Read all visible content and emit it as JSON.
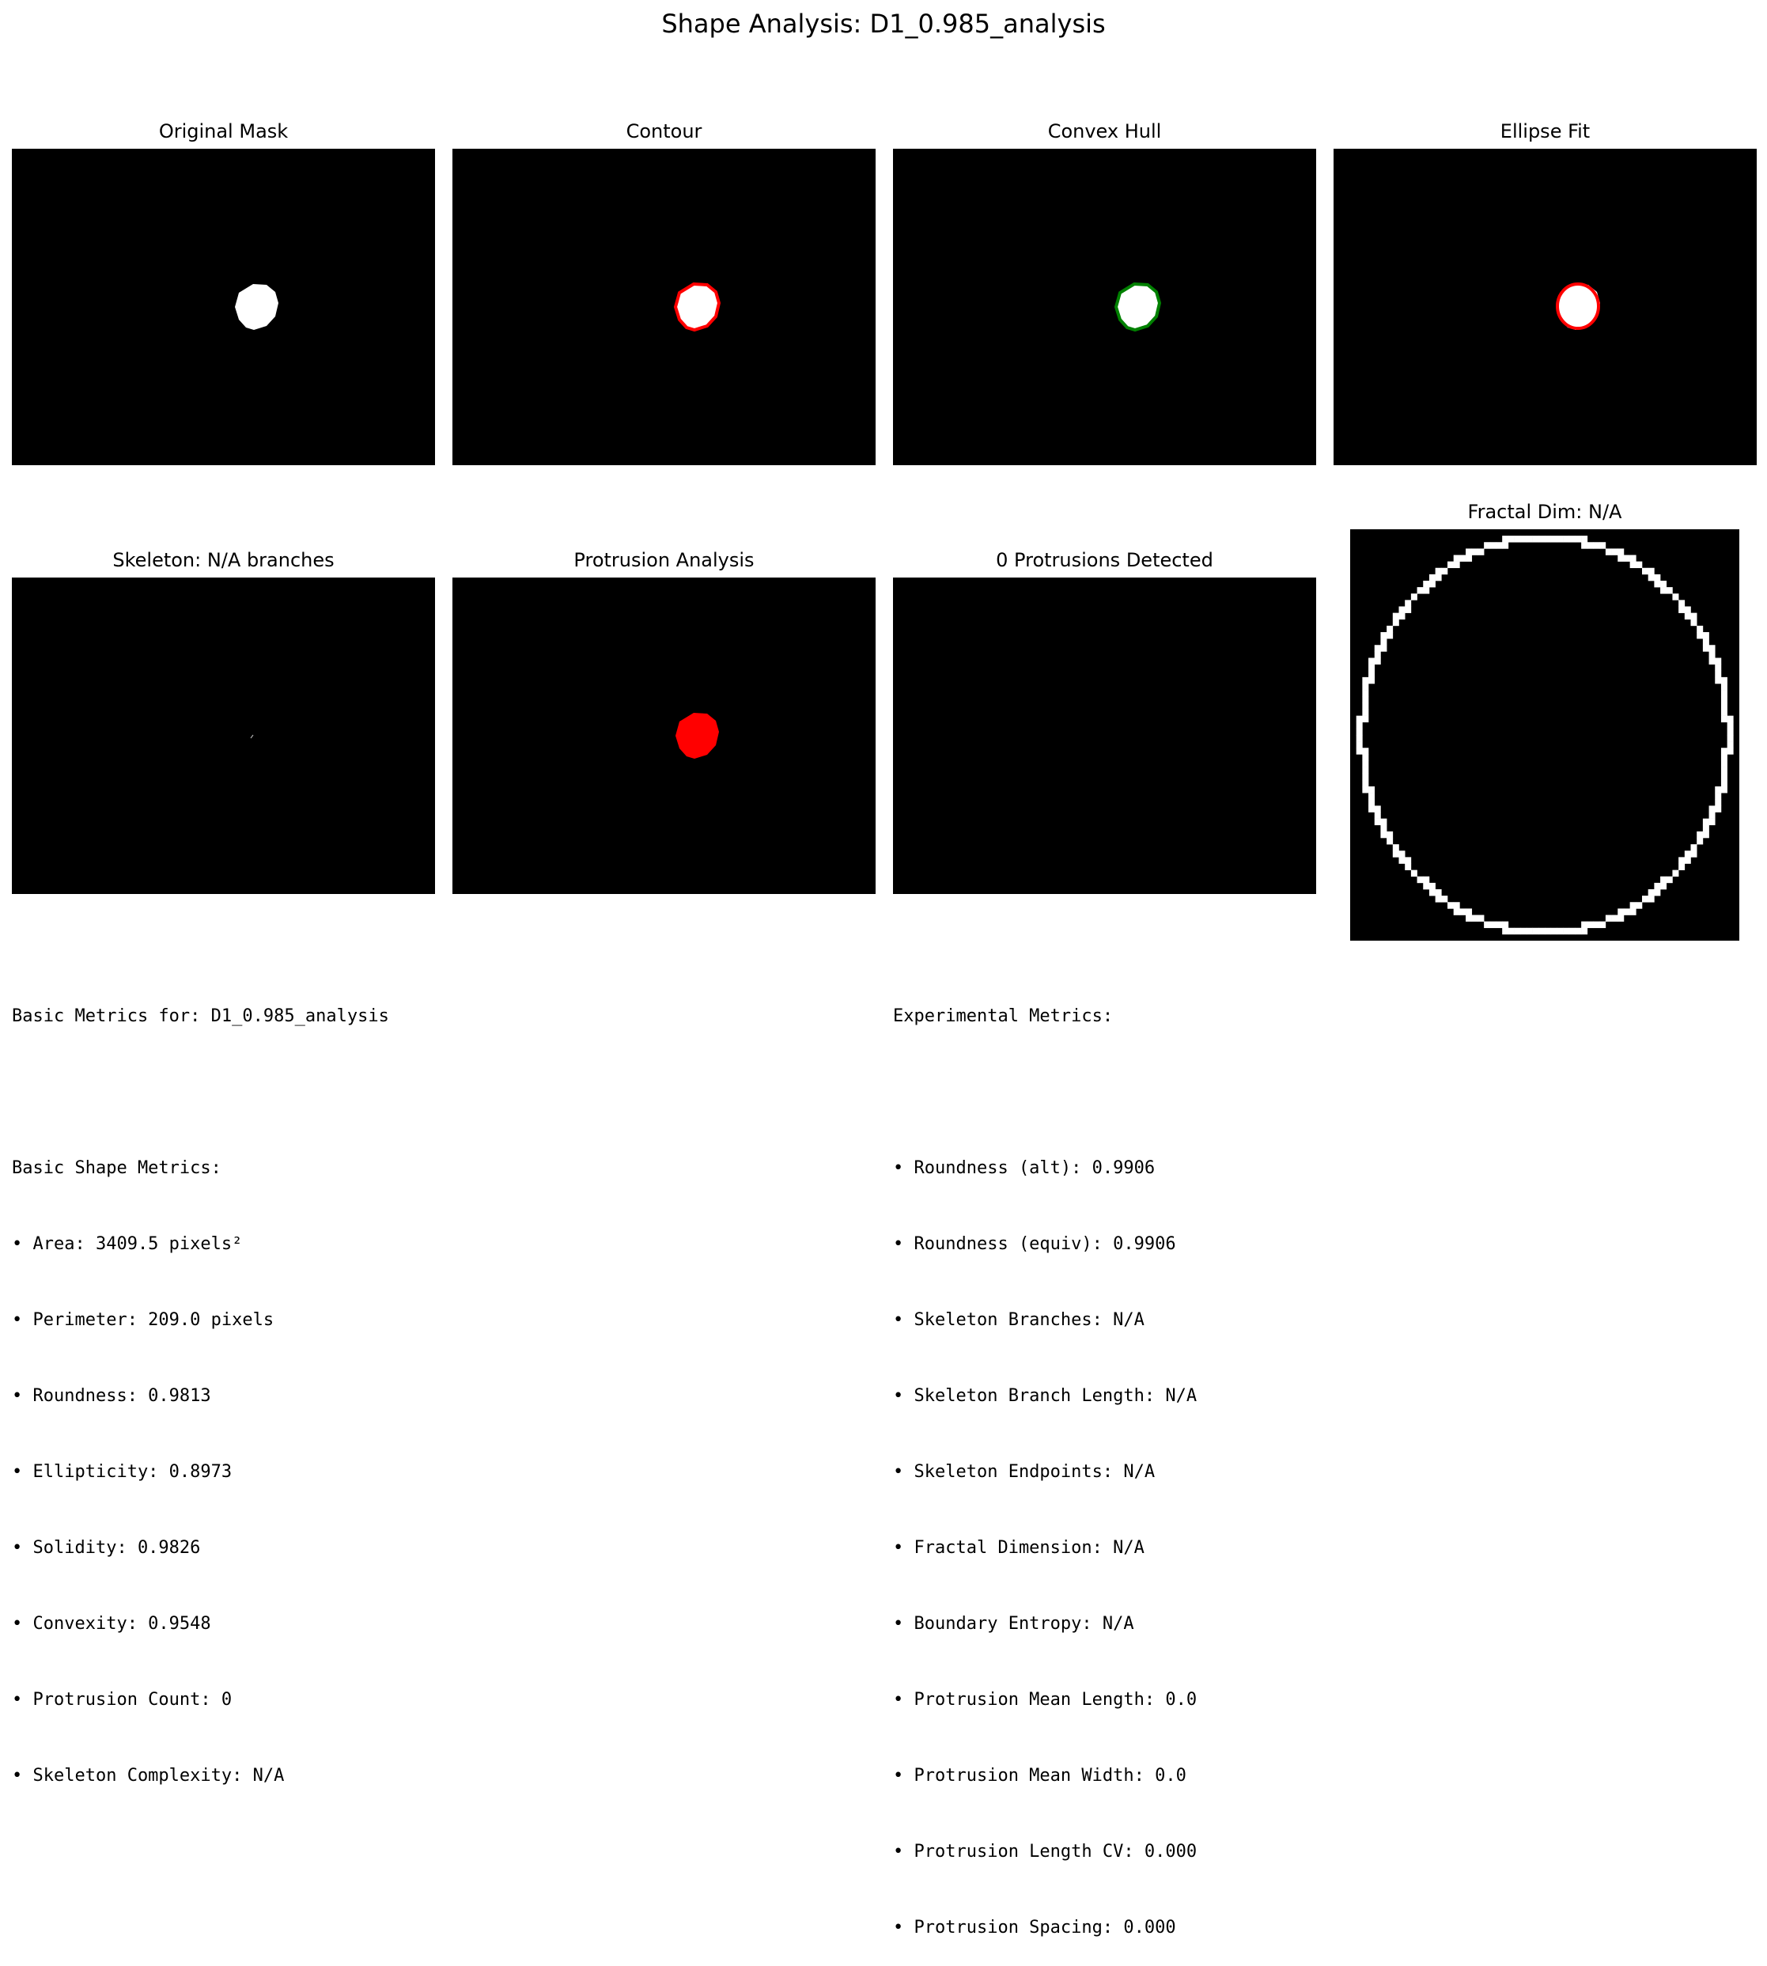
{
  "title": "Shape Analysis: D1_0.985_analysis",
  "panels": {
    "original": "Original Mask",
    "contour": "Contour",
    "hull": "Convex Hull",
    "ellipse": "Ellipse Fit",
    "skeleton": "Skeleton: N/A branches",
    "protrusion": "Protrusion Analysis",
    "detected": "0 Protrusions Detected",
    "fractal": "Fractal Dim: N/A"
  },
  "colors": {
    "background": "#000000",
    "mask": "#ffffff",
    "contour": "#ff0000",
    "hull": "#008000",
    "ellipse": "#ff0000",
    "protrusion": "#ff0000"
  },
  "basic": {
    "heading": "Basic Metrics for: D1_0.985_analysis",
    "subheading": "Basic Shape Metrics:",
    "items": [
      "• Area: 3409.5 pixels²",
      "• Perimeter: 209.0 pixels",
      "• Roundness: 0.9813",
      "• Ellipticity: 0.8973",
      "• Solidity: 0.9826",
      "• Convexity: 0.9548",
      "• Protrusion Count: 0",
      "• Skeleton Complexity: N/A"
    ]
  },
  "experimental": {
    "heading": "Experimental Metrics:",
    "items": [
      "• Roundness (alt): 0.9906",
      "• Roundness (equiv): 0.9906",
      "• Skeleton Branches: N/A",
      "• Skeleton Branch Length: N/A",
      "• Skeleton Endpoints: N/A",
      "• Fractal Dimension: N/A",
      "• Boundary Entropy: N/A",
      "• Protrusion Mean Length: 0.0",
      "• Protrusion Mean Width: 0.0",
      "• Protrusion Length CV: 0.000",
      "• Protrusion Spacing: 0.000"
    ]
  }
}
